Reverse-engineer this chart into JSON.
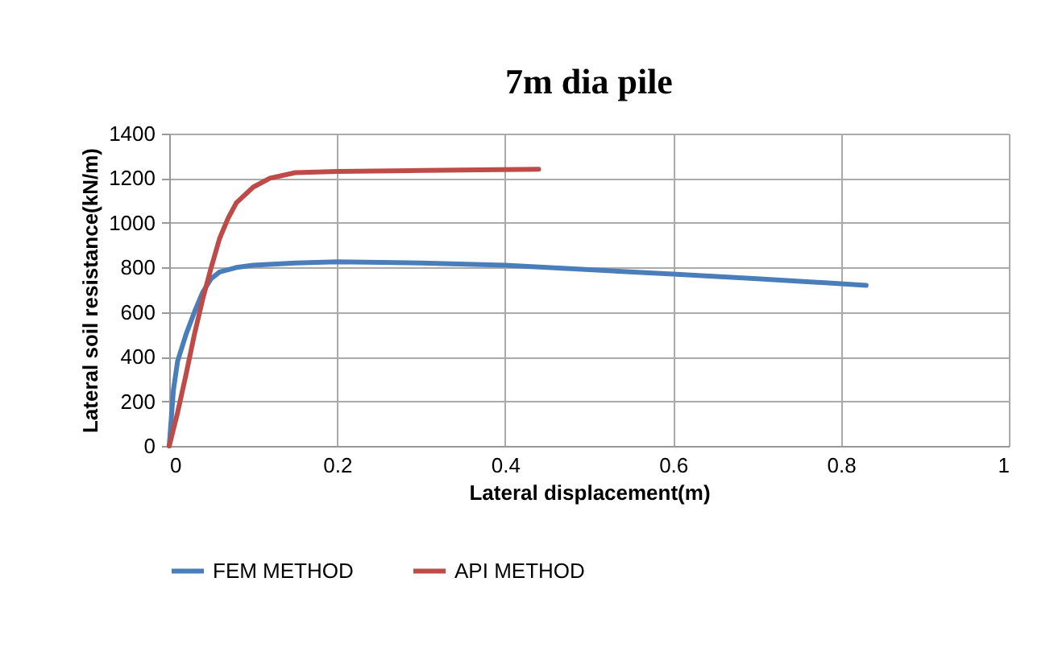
{
  "chart_data": {
    "type": "line",
    "title": "7m dia pile",
    "xlabel": "Lateral displacement(m)",
    "ylabel": "Lateral soil resistance(kN/m)",
    "series": [
      {
        "name": "FEM METHOD",
        "color": "#4a7ebb",
        "x": [
          0,
          0.005,
          0.01,
          0.02,
          0.03,
          0.04,
          0.05,
          0.06,
          0.08,
          0.1,
          0.15,
          0.2,
          0.3,
          0.4,
          0.5,
          0.6,
          0.7,
          0.83
        ],
        "values": [
          0,
          250,
          380,
          500,
          600,
          690,
          750,
          780,
          800,
          810,
          820,
          825,
          820,
          810,
          790,
          770,
          750,
          720
        ]
      },
      {
        "name": "API METHOD",
        "color": "#be4b48",
        "x": [
          0,
          0.01,
          0.02,
          0.03,
          0.04,
          0.05,
          0.06,
          0.07,
          0.08,
          0.1,
          0.12,
          0.15,
          0.2,
          0.3,
          0.44
        ],
        "values": [
          0,
          150,
          320,
          500,
          660,
          800,
          930,
          1020,
          1090,
          1160,
          1200,
          1225,
          1230,
          1235,
          1240
        ]
      }
    ],
    "xlim": [
      0,
      1
    ],
    "xticks": [
      0,
      0.2,
      0.4,
      0.6,
      0.8,
      1
    ],
    "ylim": [
      0,
      1400
    ],
    "yticks": [
      0,
      200,
      400,
      600,
      800,
      1000,
      1200,
      1400
    ],
    "grid": true,
    "legend": "bottom",
    "marker": "none",
    "line_style": "solid"
  }
}
